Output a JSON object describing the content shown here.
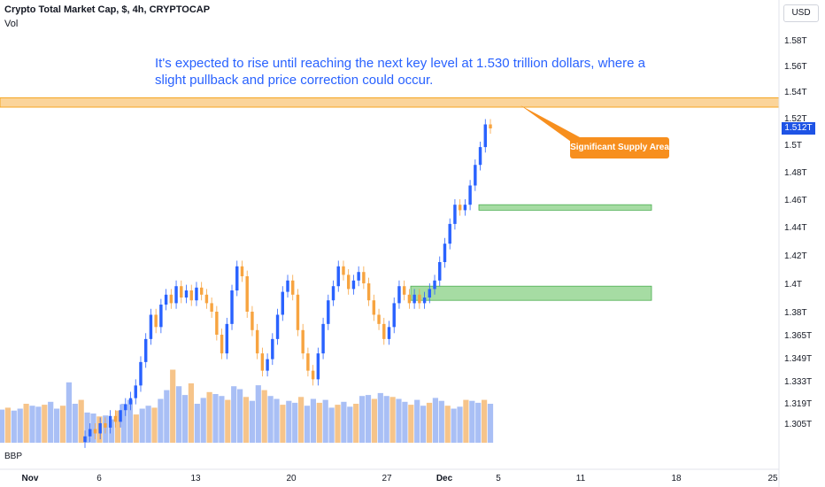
{
  "header": {
    "symbol_title": "Crypto Total Market Cap, $, 4h, CRYPTOCAP",
    "volume_label": "Vol",
    "currency_button": "USD",
    "lower_indicator_label": "BBP"
  },
  "annotations": {
    "note_text": "It's expected to rise until reaching the next key level at 1.530 trillion dollars, where a slight pullback and price correction could occur.",
    "supply_label": "Significant Supply Area",
    "current_price_tag": "1.512T"
  },
  "colors": {
    "up": "#2962ff",
    "down": "#f7a440",
    "supply_zone": "#fbd49a",
    "demand_zone": "#a6dca3",
    "callout": "#f78f1e",
    "text_blue": "#2962ff"
  },
  "chart_data": {
    "type": "candlestick",
    "y_axis": {
      "tick_labels": [
        "1.58T",
        "1.56T",
        "1.54T",
        "1.52T",
        "1.5T",
        "1.48T",
        "1.46T",
        "1.44T",
        "1.42T",
        "1.4T",
        "1.38T",
        "1.365T",
        "1.349T",
        "1.333T",
        "1.319T",
        "1.305T"
      ],
      "tick_values": [
        1.58,
        1.56,
        1.54,
        1.52,
        1.5,
        1.48,
        1.46,
        1.44,
        1.42,
        1.4,
        1.38,
        1.365,
        1.349,
        1.333,
        1.319,
        1.305
      ]
    },
    "x_axis": {
      "tick_labels": [
        "Nov",
        "6",
        "13",
        "20",
        "27",
        "Dec",
        "5",
        "11",
        "18",
        "25"
      ],
      "bold_ticks": [
        "Nov",
        "Dec"
      ]
    },
    "candles_close": [
      1.296,
      1.301,
      1.298,
      1.305,
      1.302,
      1.31,
      1.306,
      1.314,
      1.318,
      1.322,
      1.33,
      1.346,
      1.362,
      1.378,
      1.37,
      1.385,
      1.392,
      1.386,
      1.398,
      1.39,
      1.395,
      1.388,
      1.397,
      1.392,
      1.386,
      1.38,
      1.365,
      1.352,
      1.372,
      1.395,
      1.412,
      1.405,
      1.38,
      1.368,
      1.352,
      1.34,
      1.348,
      1.362,
      1.378,
      1.394,
      1.402,
      1.392,
      1.368,
      1.352,
      1.34,
      1.334,
      1.352,
      1.372,
      1.388,
      1.398,
      1.412,
      1.406,
      1.396,
      1.402,
      1.408,
      1.4,
      1.388,
      1.378,
      1.372,
      1.362,
      1.37,
      1.386,
      1.398,
      1.392,
      1.386,
      1.392,
      1.386,
      1.39,
      1.396,
      1.402,
      1.415,
      1.428,
      1.442,
      1.456,
      1.452,
      1.456,
      1.47,
      1.485,
      1.498,
      1.515,
      1.512
    ],
    "volume_bars": [
      0.34,
      0.36,
      0.33,
      0.35,
      0.4,
      0.38,
      0.37,
      0.39,
      0.42,
      0.35,
      0.38,
      0.62,
      0.4,
      0.44,
      0.31,
      0.3,
      0.27,
      0.28,
      0.24,
      0.33,
      0.4,
      0.44,
      0.29,
      0.35,
      0.38,
      0.36,
      0.45,
      0.54,
      0.75,
      0.58,
      0.49,
      0.61,
      0.4,
      0.46,
      0.52,
      0.5,
      0.48,
      0.44,
      0.58,
      0.55,
      0.47,
      0.43,
      0.59,
      0.54,
      0.48,
      0.45,
      0.39,
      0.43,
      0.41,
      0.47,
      0.38,
      0.45,
      0.41,
      0.44,
      0.36,
      0.39,
      0.42,
      0.37,
      0.4,
      0.48,
      0.49,
      0.45,
      0.51,
      0.48,
      0.47,
      0.45,
      0.42,
      0.39,
      0.44,
      0.38,
      0.41,
      0.46,
      0.43,
      0.38,
      0.35,
      0.37,
      0.44,
      0.43,
      0.41,
      0.44,
      0.4
    ],
    "zones": [
      {
        "name": "Significant Supply Area",
        "low": 1.528,
        "high": 1.535
      },
      {
        "name": "demand-upper",
        "low": 1.452,
        "high": 1.456
      },
      {
        "name": "demand-lower",
        "low": 1.388,
        "high": 1.398
      }
    ],
    "current_price": 1.512
  }
}
